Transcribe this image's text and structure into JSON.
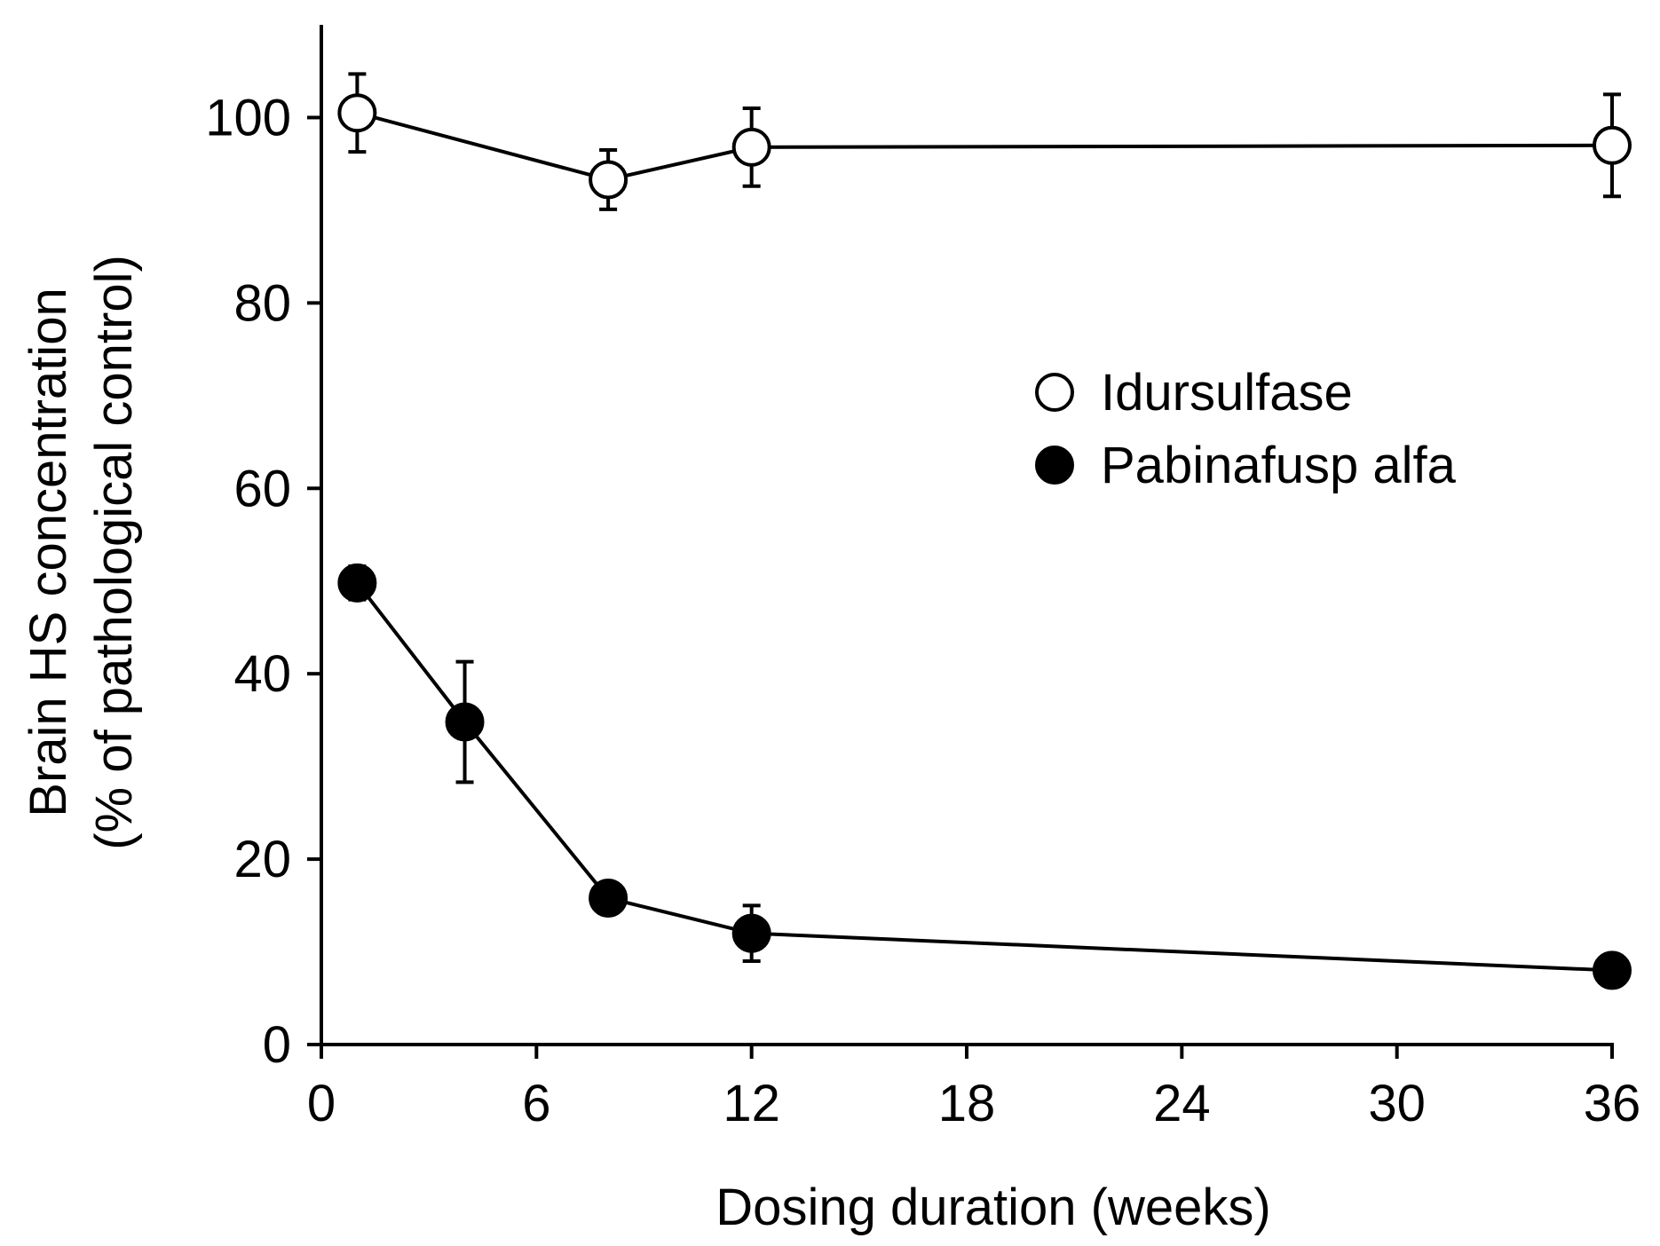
{
  "chart_data": {
    "type": "line",
    "title": "",
    "xlabel": "Dosing duration (weeks)",
    "ylabel": [
      "Brain HS concentration",
      "(% of pathological control)"
    ],
    "xlim": [
      0,
      36
    ],
    "ylim": [
      0,
      110
    ],
    "xticks": [
      0,
      6,
      12,
      18,
      24,
      30,
      36
    ],
    "yticks": [
      0,
      20,
      40,
      60,
      80,
      100
    ],
    "legend_position": "right-center",
    "series": [
      {
        "name": "Idursulfase",
        "marker": "open-circle",
        "x": [
          1,
          8,
          12,
          36
        ],
        "y": [
          100.5,
          93.3,
          96.8,
          97.0
        ],
        "err": [
          4.2,
          3.2,
          4.2,
          5.5
        ]
      },
      {
        "name": "Pabinafusp alfa",
        "marker": "filled-circle",
        "x": [
          1,
          4,
          8,
          12,
          36
        ],
        "y": [
          49.8,
          34.8,
          15.8,
          12.0,
          8.0
        ],
        "err": [
          1.8,
          6.5,
          1.2,
          3.0,
          0.8
        ]
      }
    ]
  }
}
